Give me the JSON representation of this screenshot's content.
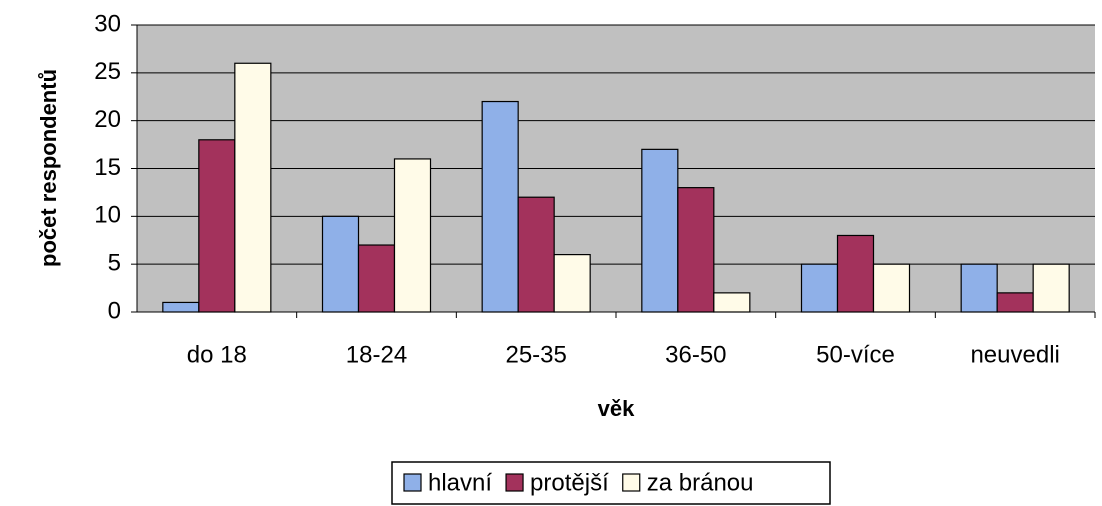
{
  "chart_data": {
    "type": "bar",
    "categories": [
      "do 18",
      "18-24",
      "25-35",
      "36-50",
      "50-více",
      "neuvedli"
    ],
    "series": [
      {
        "name": "hlavní",
        "color": "#8fb0e8",
        "values": [
          1,
          10,
          22,
          17,
          5,
          5
        ]
      },
      {
        "name": "protější",
        "color": "#a3325c",
        "values": [
          18,
          7,
          12,
          13,
          8,
          2
        ]
      },
      {
        "name": "za bránou",
        "color": "#fffbe8",
        "values": [
          26,
          16,
          6,
          2,
          5,
          5
        ]
      }
    ],
    "xlabel": "věk",
    "ylabel": "počet respondentů",
    "ylim": [
      0,
      30
    ],
    "yticks": [
      0,
      5,
      10,
      15,
      20,
      25,
      30
    ],
    "grid": true,
    "legend": "bottom"
  }
}
